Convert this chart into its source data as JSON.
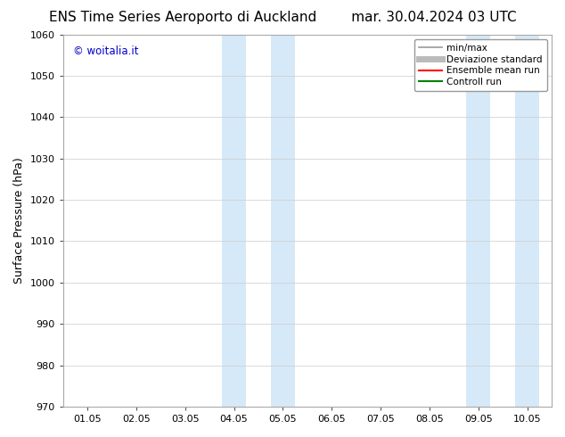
{
  "title_left": "ENS Time Series Aeroporto di Auckland",
  "title_right": "mar. 30.04.2024 03 UTC",
  "ylabel": "Surface Pressure (hPa)",
  "ylim": [
    970,
    1060
  ],
  "yticks": [
    970,
    980,
    990,
    1000,
    1010,
    1020,
    1030,
    1040,
    1050,
    1060
  ],
  "xlim_start": -0.5,
  "xlim_end": 9.5,
  "xtick_labels": [
    "01.05",
    "02.05",
    "03.05",
    "04.05",
    "05.05",
    "06.05",
    "07.05",
    "08.05",
    "09.05",
    "10.05"
  ],
  "xtick_positions": [
    0,
    1,
    2,
    3,
    4,
    5,
    6,
    7,
    8,
    9
  ],
  "shaded_bands": [
    {
      "xmin": 2.75,
      "xmax": 3.25,
      "color": "#d6e9f8"
    },
    {
      "xmin": 3.75,
      "xmax": 4.25,
      "color": "#d6e9f8"
    },
    {
      "xmin": 7.75,
      "xmax": 8.25,
      "color": "#d6e9f8"
    },
    {
      "xmin": 8.75,
      "xmax": 9.25,
      "color": "#d6e9f8"
    }
  ],
  "copyright_text": "© woitalia.it",
  "copyright_color": "#0000cc",
  "background_color": "#ffffff",
  "legend_items": [
    {
      "label": "min/max",
      "color": "#999999",
      "lw": 1.2,
      "style": "solid"
    },
    {
      "label": "Deviazione standard",
      "color": "#bbbbbb",
      "lw": 5,
      "style": "solid"
    },
    {
      "label": "Ensemble mean run",
      "color": "#ff0000",
      "lw": 1.5,
      "style": "solid"
    },
    {
      "label": "Controll run",
      "color": "#008000",
      "lw": 1.5,
      "style": "solid"
    }
  ],
  "grid_color": "#cccccc",
  "tick_fontsize": 8,
  "label_fontsize": 9,
  "title_fontsize": 11
}
